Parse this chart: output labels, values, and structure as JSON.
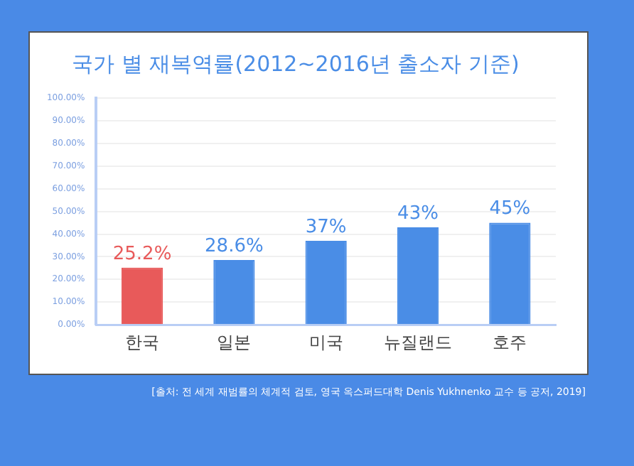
{
  "chart_data": {
    "type": "bar",
    "title": "국가 별 재복역률(2012~2016년 출소자 기준)",
    "categories": [
      "한국",
      "일본",
      "미국",
      "뉴질랜드",
      "호주"
    ],
    "values": [
      25.2,
      28.6,
      37,
      43,
      45
    ],
    "colors": [
      "#e85a5a",
      "#4a8de6",
      "#4a8de6",
      "#4a8de6",
      "#4a8de6"
    ],
    "value_labels": [
      "25.2%",
      "28.6%",
      "37%",
      "43%",
      "45%"
    ],
    "ylim": [
      0,
      100
    ],
    "yticks": [
      {
        "value": 0,
        "label": "0.00%"
      },
      {
        "value": 10,
        "label": "10.00%"
      },
      {
        "value": 20,
        "label": "20.00%"
      },
      {
        "value": 30,
        "label": "30.00%"
      },
      {
        "value": 40,
        "label": "40.00%"
      },
      {
        "value": 50,
        "label": "50.00%"
      },
      {
        "value": 60,
        "label": "60.00%"
      },
      {
        "value": 70,
        "label": "70.00%"
      },
      {
        "value": 80,
        "label": "80.00%"
      },
      {
        "value": 90,
        "label": "90.00%"
      },
      {
        "value": 100,
        "label": "100.00%"
      }
    ],
    "grid": "y",
    "annotations": [
      "[출처: 전 세계 재범률의 체계적 검토, 영국 옥스퍼드대학 Denis Yukhnenko 교수 등 공저, 2019]"
    ]
  }
}
